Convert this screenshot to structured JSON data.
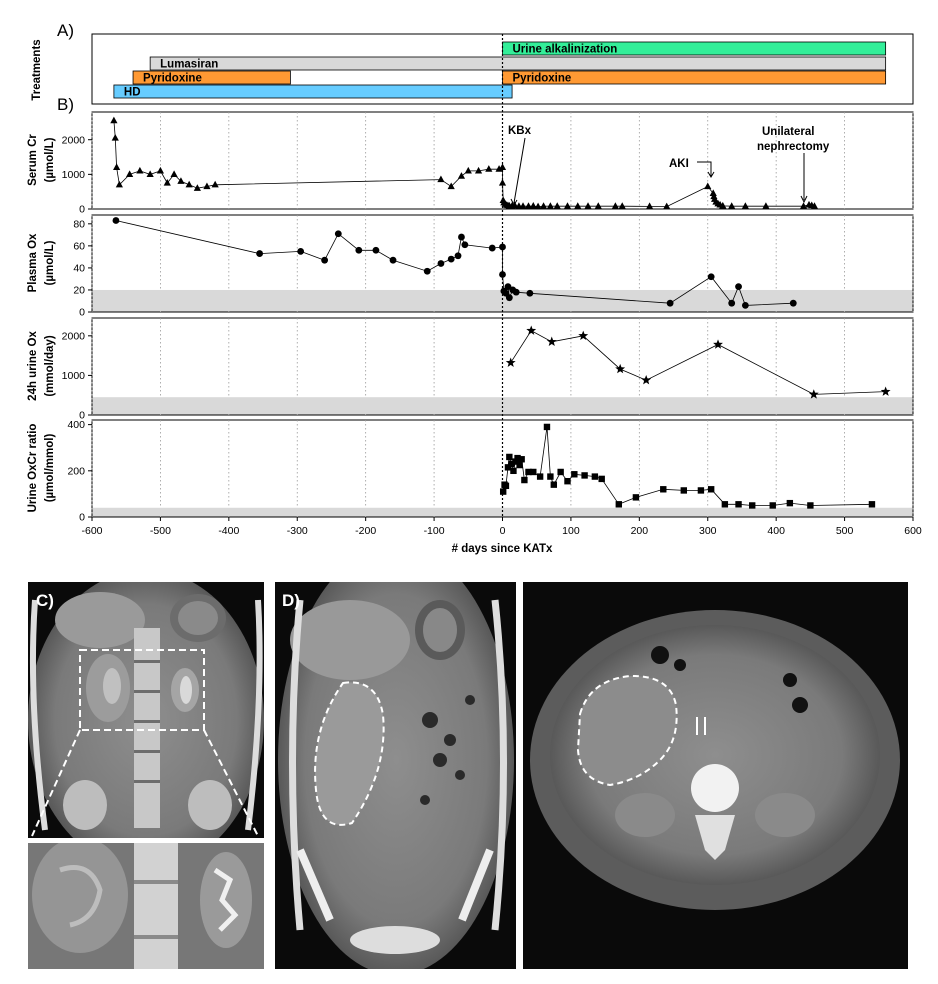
{
  "panel_labels": {
    "a": "A)",
    "b": "B)",
    "c": "C)",
    "d": "D)"
  },
  "colors": {
    "urine_alkalinization": "#33ee99",
    "lumasiran": "#d9d9d9",
    "pyridoxine": "#ff9933",
    "hd": "#66ccff",
    "reference_band": "#d9d9d9"
  },
  "chart_data": [
    {
      "type": "bar",
      "subtype": "timeline",
      "panel": "A",
      "ylabel": "Treatments",
      "bars": [
        {
          "label": "Urine alkalinization",
          "start": 0,
          "end": 560,
          "color": "#33ee99",
          "row": 0
        },
        {
          "label": "Lumasiran",
          "start": -515,
          "end": 560,
          "color": "#d9d9d9",
          "row": 1
        },
        {
          "label": "Pyridoxine",
          "start": -540,
          "end": -310,
          "color": "#ff9933",
          "row": 2
        },
        {
          "label": "Pyridoxine",
          "start": 0,
          "end": 560,
          "color": "#ff9933",
          "row": 2
        },
        {
          "label": "HD",
          "start": -568,
          "end": 14,
          "color": "#66ccff",
          "row": 3
        }
      ],
      "xlim": [
        -600,
        600
      ]
    },
    {
      "type": "line",
      "panel": "B",
      "ylabel": "Serum Cr",
      "yunit": "(µmol/L)",
      "ylim": [
        0,
        2800
      ],
      "yticks": [
        "0",
        "1000",
        "2000"
      ],
      "ytick_values": [
        0,
        1000,
        2000
      ],
      "marker": "triangle",
      "x": [
        -568,
        -566,
        -564,
        -560,
        -545,
        -530,
        -515,
        -500,
        -490,
        -480,
        -470,
        -458,
        -446,
        -432,
        -420,
        -90,
        -75,
        -60,
        -50,
        -35,
        -20,
        -5,
        0,
        0,
        1,
        2,
        4,
        6,
        8,
        10,
        14,
        18,
        24,
        30,
        38,
        45,
        52,
        60,
        70,
        80,
        95,
        110,
        125,
        140,
        165,
        175,
        215,
        240,
        300,
        308,
        309,
        310,
        312,
        315,
        318,
        322,
        335,
        355,
        385,
        440,
        448,
        452,
        456
      ],
      "y": [
        2550,
        2050,
        1200,
        700,
        1000,
        1100,
        1000,
        1100,
        750,
        1000,
        800,
        700,
        600,
        650,
        700,
        850,
        650,
        950,
        1100,
        1100,
        1150,
        1150,
        1200,
        750,
        250,
        180,
        140,
        110,
        100,
        90,
        90,
        100,
        80,
        80,
        80,
        85,
        70,
        80,
        80,
        80,
        80,
        80,
        80,
        80,
        80,
        80,
        75,
        70,
        650,
        450,
        360,
        280,
        200,
        150,
        120,
        90,
        80,
        80,
        80,
        80,
        120,
        100,
        80
      ],
      "annotations": [
        "KBx",
        "AKI",
        "Unilateral",
        "nephrectomy"
      ],
      "xlim": [
        -600,
        600
      ]
    },
    {
      "type": "scatter",
      "panel": "B",
      "ylabel": "Plasma Ox",
      "yunit": "(µmol/L)",
      "ylim": [
        0,
        88
      ],
      "yticks": [
        "0",
        "20",
        "40",
        "60",
        "80"
      ],
      "ytick_values": [
        0,
        20,
        40,
        60,
        80
      ],
      "reference_band": [
        0,
        20
      ],
      "marker": "circle",
      "x": [
        -565,
        -355,
        -295,
        -260,
        -240,
        -210,
        -185,
        -160,
        -110,
        -90,
        -75,
        -65,
        -60,
        -55,
        -15,
        0,
        0,
        2,
        5,
        8,
        10,
        15,
        20,
        40,
        245,
        305,
        335,
        345,
        355,
        425
      ],
      "y": [
        83,
        53,
        55,
        47,
        71,
        56,
        56,
        47,
        37,
        44,
        48,
        51,
        68,
        61,
        58,
        59,
        34,
        19,
        17,
        23,
        13,
        20,
        18,
        17,
        8,
        32,
        8,
        23,
        6,
        8
      ],
      "xlim": [
        -600,
        600
      ]
    },
    {
      "type": "line",
      "panel": "B",
      "ylabel": "24h urine Ox",
      "yunit": "(mmol/day)",
      "ylim": [
        0,
        2450
      ],
      "yticks": [
        "0",
        "1000",
        "2000"
      ],
      "ytick_values": [
        0,
        1000,
        2000
      ],
      "reference_band": [
        0,
        450
      ],
      "marker": "star",
      "x": [
        12,
        42,
        72,
        118,
        172,
        210,
        315,
        455,
        560
      ],
      "y": [
        1320,
        2130,
        1850,
        2000,
        1160,
        880,
        1780,
        520,
        590
      ],
      "xlim": [
        -600,
        600
      ]
    },
    {
      "type": "line",
      "panel": "B",
      "ylabel": "Urine OxCr ratio",
      "yunit": "(µmol/mmol)",
      "ylim": [
        0,
        420
      ],
      "yticks": [
        "0",
        "200",
        "400"
      ],
      "ytick_values": [
        0,
        200,
        400
      ],
      "reference_band": [
        0,
        40
      ],
      "marker": "square",
      "x": [
        1,
        3,
        5,
        8,
        10,
        13,
        16,
        19,
        22,
        25,
        28,
        32,
        38,
        45,
        55,
        65,
        70,
        75,
        85,
        95,
        105,
        120,
        135,
        145,
        170,
        195,
        235,
        265,
        290,
        305,
        325,
        345,
        365,
        395,
        420,
        450,
        540
      ],
      "y": [
        110,
        140,
        135,
        215,
        260,
        230,
        200,
        240,
        255,
        225,
        250,
        160,
        195,
        195,
        175,
        390,
        175,
        140,
        195,
        155,
        185,
        180,
        175,
        165,
        55,
        85,
        120,
        115,
        115,
        120,
        55,
        55,
        50,
        50,
        60,
        50,
        55
      ],
      "xlabel": "# days since KATx",
      "xticks": [
        "-600",
        "-500",
        "-400",
        "-300",
        "-200",
        "-100",
        "0",
        "100",
        "200",
        "300",
        "400",
        "500",
        "600"
      ],
      "xtick_values": [
        -600,
        -500,
        -400,
        -300,
        -200,
        -100,
        0,
        100,
        200,
        300,
        400,
        500,
        600
      ],
      "xlim": [
        -600,
        600
      ]
    }
  ],
  "ct_panels": [
    {
      "name": "coronal-ct-c",
      "view": "coronal",
      "box": "dashed-square"
    },
    {
      "name": "zoom-ct-c",
      "view": "coronal-zoom"
    },
    {
      "name": "coronal-ct-d",
      "view": "coronal",
      "outline": "dashed-kidney"
    },
    {
      "name": "axial-ct-d",
      "view": "axial",
      "outline": "dashed-kidney"
    }
  ]
}
